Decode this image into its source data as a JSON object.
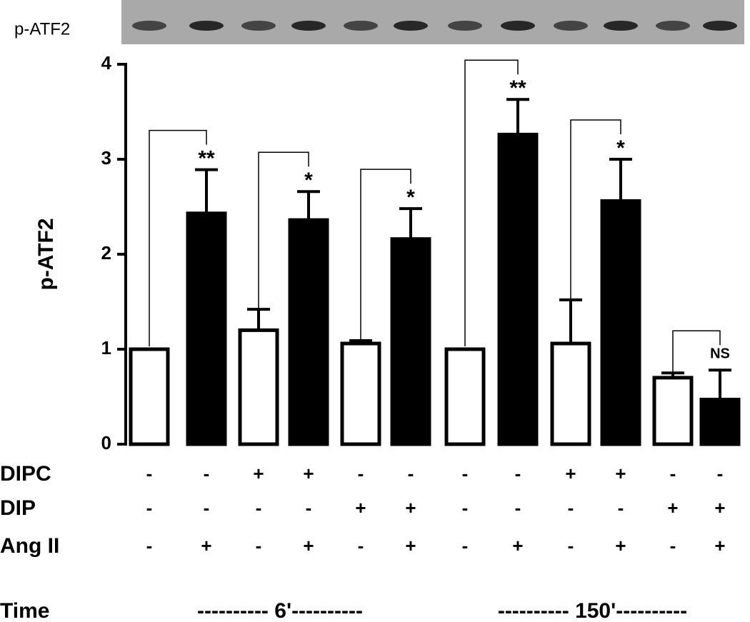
{
  "chart_data": {
    "type": "bar",
    "blot_label": "p-ATF2",
    "y_label": "p-ATF2",
    "ylim": [
      0,
      4
    ],
    "yticks": [
      0,
      1,
      2,
      3,
      4
    ],
    "values": [
      1.0,
      2.43,
      1.2,
      2.36,
      1.06,
      2.16,
      1.0,
      3.26,
      1.06,
      2.56,
      0.7,
      0.47
    ],
    "errors": [
      0,
      0.46,
      0.22,
      0.3,
      0.03,
      0.32,
      0,
      0.37,
      0.46,
      0.44,
      0.05,
      0.31
    ],
    "colors": [
      "#ffffff",
      "#000000",
      "#ffffff",
      "#000000",
      "#ffffff",
      "#000000",
      "#ffffff",
      "#000000",
      "#ffffff",
      "#000000",
      "#ffffff",
      "#000000"
    ],
    "significance": [
      null,
      "**",
      null,
      "*",
      null,
      "*",
      null,
      "**",
      null,
      "*",
      null,
      "NS"
    ],
    "treatments": [
      {
        "name": "DIPC",
        "signs": [
          "-",
          "-",
          "+",
          "+",
          "-",
          "-",
          "-",
          "-",
          "+",
          "+",
          "-",
          "-"
        ]
      },
      {
        "name": "DIP",
        "signs": [
          "-",
          "-",
          "-",
          "-",
          "+",
          "+",
          "-",
          "-",
          "-",
          "-",
          "+",
          "+"
        ]
      },
      {
        "name": "Ang II",
        "signs": [
          "-",
          "+",
          "-",
          "+",
          "-",
          "+",
          "-",
          "+",
          "-",
          "+",
          "-",
          "+"
        ]
      }
    ],
    "time": {
      "label": "Time",
      "groups": [
        "---------- 6'----------",
        "---------- 150'----------"
      ]
    }
  }
}
